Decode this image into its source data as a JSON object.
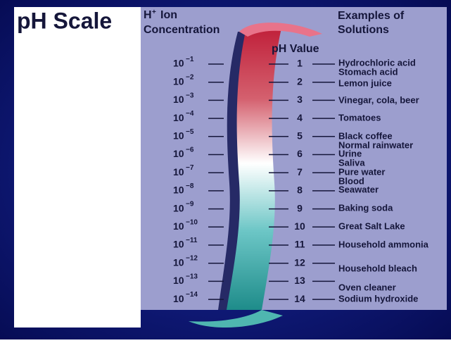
{
  "title": "pH Scale",
  "headers": {
    "concentration_symbol": "H",
    "concentration_charge": "+",
    "concentration_rest": "Ion",
    "concentration_line2": "Concentration",
    "ph": "pH Value",
    "examples": [
      "Examples of",
      "Solutions"
    ]
  },
  "rows": [
    {
      "base": "10",
      "exponent": "−1",
      "ph": 1
    },
    {
      "base": "10",
      "exponent": "−2",
      "ph": 2
    },
    {
      "base": "10",
      "exponent": "−3",
      "ph": 3
    },
    {
      "base": "10",
      "exponent": "−4",
      "ph": 4
    },
    {
      "base": "10",
      "exponent": "−5",
      "ph": 5
    },
    {
      "base": "10",
      "exponent": "−6",
      "ph": 6
    },
    {
      "base": "10",
      "exponent": "−7",
      "ph": 7
    },
    {
      "base": "10",
      "exponent": "−8",
      "ph": 8
    },
    {
      "base": "10",
      "exponent": "−9",
      "ph": 9
    },
    {
      "base": "10",
      "exponent": "−10",
      "ph": 10
    },
    {
      "base": "10",
      "exponent": "−11",
      "ph": 11
    },
    {
      "base": "10",
      "exponent": "−12",
      "ph": 12
    },
    {
      "base": "10",
      "exponent": "−13",
      "ph": 13
    },
    {
      "base": "10",
      "exponent": "−14",
      "ph": 14
    }
  ],
  "examples": [
    "Hydrochloric acid",
    "Stomach acid",
    "Lemon juice",
    "Vinegar, cola, beer",
    "Tomatoes",
    "Black coffee",
    "Normal rainwater",
    "Urine",
    "Saliva",
    "Pure water",
    "Blood",
    "Seawater",
    "Baking soda",
    "Great Salt Lake",
    "Household ammonia",
    "Household bleach",
    "Oven cleaner",
    "Sodium hydroxide"
  ]
}
